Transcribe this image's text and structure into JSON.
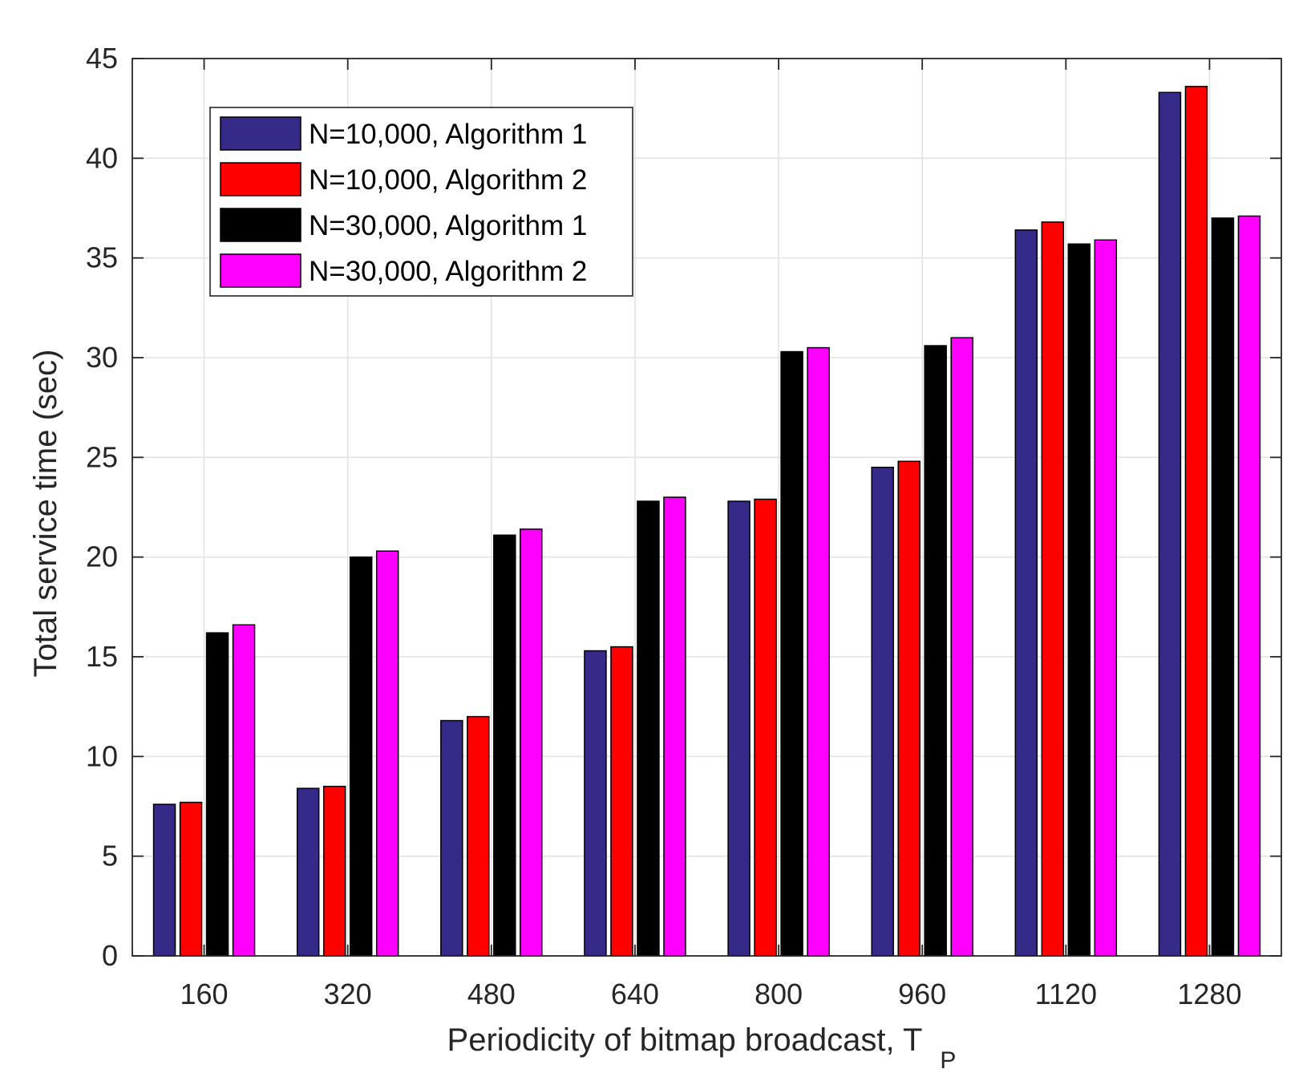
{
  "chart_data": {
    "type": "bar",
    "title": "",
    "xlabel": "Periodicity of bitmap broadcast, T",
    "xlabel_subscript": "P",
    "ylabel": "Total service time (sec)",
    "ylim": [
      0,
      45
    ],
    "yticks": [
      0,
      5,
      10,
      15,
      20,
      25,
      30,
      35,
      40,
      45
    ],
    "grid": true,
    "legend_position": "top-left",
    "categories": [
      "160",
      "320",
      "480",
      "640",
      "800",
      "960",
      "1120",
      "1280"
    ],
    "series": [
      {
        "name": "N=10,000, Algorithm 1",
        "color": "#352a87",
        "values": [
          7.6,
          8.4,
          11.8,
          15.3,
          22.8,
          24.5,
          36.4,
          43.3
        ]
      },
      {
        "name": "N=10,000, Algorithm 2",
        "color": "#ff0000",
        "values": [
          7.7,
          8.5,
          12.0,
          15.5,
          22.9,
          24.8,
          36.8,
          43.6
        ]
      },
      {
        "name": "N=30,000, Algorithm 1",
        "color": "#000000",
        "values": [
          16.2,
          20.0,
          21.1,
          22.8,
          30.3,
          30.6,
          35.7,
          37.0
        ]
      },
      {
        "name": "N=30,000, Algorithm 2",
        "color": "#ff00ff",
        "values": [
          16.6,
          20.3,
          21.4,
          23.0,
          30.5,
          31.0,
          35.9,
          37.1
        ]
      }
    ]
  }
}
